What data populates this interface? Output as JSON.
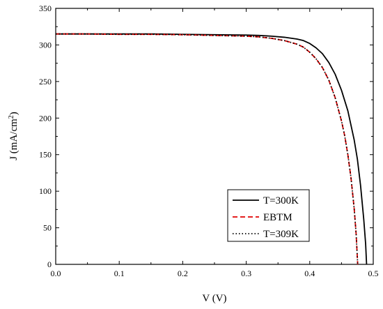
{
  "chart_data": {
    "type": "line",
    "xlabel": "V (V)",
    "ylabel_main": "J (mA/cm",
    "ylabel_sup": "2",
    "ylabel_close": ")",
    "xlim": [
      0.0,
      0.5
    ],
    "ylim": [
      0,
      350
    ],
    "xticks": [
      "0.0",
      "0.1",
      "0.2",
      "0.3",
      "0.4",
      "0.5"
    ],
    "yticks": [
      "0",
      "50",
      "100",
      "150",
      "200",
      "250",
      "300",
      "350"
    ],
    "grid": false,
    "legend_position": "bottom-right",
    "series": [
      {
        "name": "T=300K",
        "color": "#000000",
        "style": "solid",
        "points": [
          [
            0.0,
            315
          ],
          [
            0.05,
            315
          ],
          [
            0.1,
            315
          ],
          [
            0.15,
            315
          ],
          [
            0.2,
            314.5
          ],
          [
            0.25,
            314
          ],
          [
            0.3,
            313.5
          ],
          [
            0.32,
            313
          ],
          [
            0.34,
            312
          ],
          [
            0.36,
            310.5
          ],
          [
            0.38,
            308
          ],
          [
            0.39,
            306
          ],
          [
            0.4,
            302
          ],
          [
            0.41,
            296
          ],
          [
            0.42,
            288
          ],
          [
            0.43,
            276
          ],
          [
            0.44,
            260
          ],
          [
            0.45,
            238
          ],
          [
            0.46,
            210
          ],
          [
            0.47,
            170
          ],
          [
            0.475,
            144
          ],
          [
            0.48,
            108
          ],
          [
            0.485,
            62
          ],
          [
            0.488,
            28
          ],
          [
            0.4895,
            0
          ]
        ]
      },
      {
        "name": "EBTM",
        "color": "#e00000",
        "style": "dashed",
        "points": [
          [
            0.0,
            315
          ],
          [
            0.05,
            315
          ],
          [
            0.1,
            314.5
          ],
          [
            0.15,
            314.5
          ],
          [
            0.2,
            314
          ],
          [
            0.25,
            313
          ],
          [
            0.3,
            312
          ],
          [
            0.32,
            311
          ],
          [
            0.34,
            309
          ],
          [
            0.36,
            306
          ],
          [
            0.38,
            301
          ],
          [
            0.39,
            297
          ],
          [
            0.4,
            290
          ],
          [
            0.41,
            281
          ],
          [
            0.42,
            269
          ],
          [
            0.43,
            252
          ],
          [
            0.44,
            228
          ],
          [
            0.45,
            196
          ],
          [
            0.455,
            176
          ],
          [
            0.46,
            150
          ],
          [
            0.465,
            118
          ],
          [
            0.47,
            76
          ],
          [
            0.473,
            42
          ],
          [
            0.4755,
            0
          ]
        ]
      },
      {
        "name": "T=309K",
        "color": "#000000",
        "style": "dotted",
        "points": [
          [
            0.0,
            315
          ],
          [
            0.05,
            315
          ],
          [
            0.1,
            314.5
          ],
          [
            0.15,
            314.5
          ],
          [
            0.2,
            314
          ],
          [
            0.25,
            313
          ],
          [
            0.3,
            312
          ],
          [
            0.32,
            311
          ],
          [
            0.34,
            309
          ],
          [
            0.36,
            306
          ],
          [
            0.38,
            301
          ],
          [
            0.39,
            297
          ],
          [
            0.4,
            290
          ],
          [
            0.41,
            281
          ],
          [
            0.42,
            269
          ],
          [
            0.43,
            252
          ],
          [
            0.44,
            228
          ],
          [
            0.45,
            196
          ],
          [
            0.455,
            176
          ],
          [
            0.46,
            150
          ],
          [
            0.465,
            118
          ],
          [
            0.47,
            76
          ],
          [
            0.473,
            42
          ],
          [
            0.4755,
            0
          ]
        ]
      }
    ]
  }
}
